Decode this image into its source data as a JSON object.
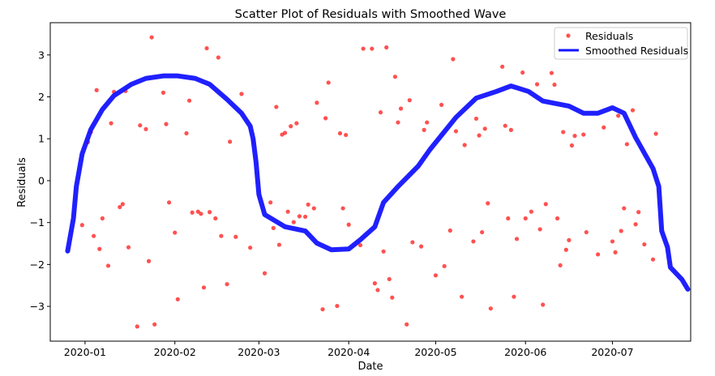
{
  "chart_data": {
    "type": "scatter",
    "title": "Scatter Plot of Residuals with Smoothed Wave",
    "xlabel": "Date",
    "ylabel": "Residuals",
    "xlim": [
      "2019-12-20",
      "2020-07-28"
    ],
    "ylim": [
      -3.83,
      3.77
    ],
    "x_ticks": [
      {
        "date": "2020-01-01",
        "label": "2020-01"
      },
      {
        "date": "2020-02-01",
        "label": "2020-02"
      },
      {
        "date": "2020-03-01",
        "label": "2020-03"
      },
      {
        "date": "2020-04-01",
        "label": "2020-04"
      },
      {
        "date": "2020-05-01",
        "label": "2020-05"
      },
      {
        "date": "2020-06-01",
        "label": "2020-06"
      },
      {
        "date": "2020-07-01",
        "label": "2020-07"
      }
    ],
    "y_ticks": [
      {
        "value": -3,
        "label": "−3"
      },
      {
        "value": -2,
        "label": "−2"
      },
      {
        "value": -1,
        "label": "−1"
      },
      {
        "value": 0,
        "label": "0"
      },
      {
        "value": 1,
        "label": "1"
      },
      {
        "value": 2,
        "label": "2"
      },
      {
        "value": 3,
        "label": "3"
      }
    ],
    "grid": false,
    "legend_position": "top-right",
    "series": [
      {
        "name": "Residuals",
        "kind": "scatter",
        "color": "#ff3333",
        "points": [
          [
            "2019-12-31",
            -1.06
          ],
          [
            "2020-01-02",
            0.92
          ],
          [
            "2020-01-03",
            1.16
          ],
          [
            "2020-01-04",
            -1.32
          ],
          [
            "2020-01-05",
            2.16
          ],
          [
            "2020-01-06",
            -1.63
          ],
          [
            "2020-01-07",
            -0.9
          ],
          [
            "2020-01-09",
            -2.03
          ],
          [
            "2020-01-10",
            1.37
          ],
          [
            "2020-01-11",
            2.12
          ],
          [
            "2020-01-13",
            -0.63
          ],
          [
            "2020-01-14",
            -0.56
          ],
          [
            "2020-01-15",
            2.14
          ],
          [
            "2020-01-16",
            -1.59
          ],
          [
            "2020-01-19",
            -3.48
          ],
          [
            "2020-01-20",
            1.32
          ],
          [
            "2020-01-22",
            1.23
          ],
          [
            "2020-01-23",
            -1.92
          ],
          [
            "2020-01-24",
            3.42
          ],
          [
            "2020-01-25",
            -3.43
          ],
          [
            "2020-01-28",
            2.1
          ],
          [
            "2020-01-29",
            1.35
          ],
          [
            "2020-01-30",
            -0.52
          ],
          [
            "2020-02-01",
            -1.24
          ],
          [
            "2020-02-02",
            -2.83
          ],
          [
            "2020-02-05",
            1.13
          ],
          [
            "2020-02-06",
            1.91
          ],
          [
            "2020-02-07",
            -0.76
          ],
          [
            "2020-02-09",
            -0.74
          ],
          [
            "2020-02-10",
            -0.79
          ],
          [
            "2020-02-11",
            -2.55
          ],
          [
            "2020-02-12",
            3.16
          ],
          [
            "2020-02-13",
            -0.75
          ],
          [
            "2020-02-15",
            -0.9
          ],
          [
            "2020-02-16",
            2.94
          ],
          [
            "2020-02-17",
            -1.32
          ],
          [
            "2020-02-19",
            -2.47
          ],
          [
            "2020-02-20",
            0.93
          ],
          [
            "2020-02-22",
            -1.34
          ],
          [
            "2020-02-24",
            2.07
          ],
          [
            "2020-02-27",
            -1.6
          ],
          [
            "2020-02-28",
            0.95
          ],
          [
            "2020-03-03",
            -2.21
          ],
          [
            "2020-03-05",
            -0.52
          ],
          [
            "2020-03-06",
            -1.13
          ],
          [
            "2020-03-07",
            1.76
          ],
          [
            "2020-03-08",
            -1.53
          ],
          [
            "2020-03-09",
            1.1
          ],
          [
            "2020-03-10",
            1.14
          ],
          [
            "2020-03-11",
            -0.74
          ],
          [
            "2020-03-12",
            1.3
          ],
          [
            "2020-03-13",
            -0.99
          ],
          [
            "2020-03-14",
            1.37
          ],
          [
            "2020-03-15",
            -0.85
          ],
          [
            "2020-03-17",
            -0.86
          ],
          [
            "2020-03-18",
            -0.57
          ],
          [
            "2020-03-20",
            -0.66
          ],
          [
            "2020-03-21",
            1.86
          ],
          [
            "2020-03-23",
            -3.07
          ],
          [
            "2020-03-24",
            1.49
          ],
          [
            "2020-03-25",
            2.34
          ],
          [
            "2020-03-28",
            -2.99
          ],
          [
            "2020-03-29",
            1.13
          ],
          [
            "2020-03-30",
            -0.66
          ],
          [
            "2020-03-31",
            1.09
          ],
          [
            "2020-04-01",
            -1.05
          ],
          [
            "2020-04-05",
            -1.54
          ],
          [
            "2020-04-06",
            3.15
          ],
          [
            "2020-04-09",
            3.15
          ],
          [
            "2020-04-10",
            -2.45
          ],
          [
            "2020-04-11",
            -2.61
          ],
          [
            "2020-04-12",
            1.63
          ],
          [
            "2020-04-13",
            -1.69
          ],
          [
            "2020-04-14",
            3.18
          ],
          [
            "2020-04-15",
            -2.35
          ],
          [
            "2020-04-16",
            -2.79
          ],
          [
            "2020-04-17",
            2.48
          ],
          [
            "2020-04-18",
            1.39
          ],
          [
            "2020-04-19",
            1.72
          ],
          [
            "2020-04-21",
            -3.43
          ],
          [
            "2020-04-22",
            1.92
          ],
          [
            "2020-04-23",
            -1.47
          ],
          [
            "2020-04-26",
            -1.57
          ],
          [
            "2020-04-27",
            1.21
          ],
          [
            "2020-04-28",
            1.39
          ],
          [
            "2020-05-01",
            -2.26
          ],
          [
            "2020-05-03",
            1.81
          ],
          [
            "2020-05-04",
            -2.04
          ],
          [
            "2020-05-06",
            -1.19
          ],
          [
            "2020-05-07",
            2.9
          ],
          [
            "2020-05-08",
            1.18
          ],
          [
            "2020-05-10",
            -2.77
          ],
          [
            "2020-05-11",
            0.85
          ],
          [
            "2020-05-14",
            -1.45
          ],
          [
            "2020-05-15",
            1.48
          ],
          [
            "2020-05-16",
            1.08
          ],
          [
            "2020-05-17",
            -1.23
          ],
          [
            "2020-05-18",
            1.24
          ],
          [
            "2020-05-19",
            -0.54
          ],
          [
            "2020-05-20",
            -3.05
          ],
          [
            "2020-05-24",
            2.72
          ],
          [
            "2020-05-25",
            1.31
          ],
          [
            "2020-05-26",
            -0.9
          ],
          [
            "2020-05-27",
            1.21
          ],
          [
            "2020-05-28",
            -2.77
          ],
          [
            "2020-05-29",
            -1.39
          ],
          [
            "2020-05-31",
            2.58
          ],
          [
            "2020-06-01",
            -0.9
          ],
          [
            "2020-06-03",
            -0.74
          ],
          [
            "2020-06-05",
            2.3
          ],
          [
            "2020-06-06",
            -1.16
          ],
          [
            "2020-06-07",
            -2.96
          ],
          [
            "2020-06-08",
            -0.56
          ],
          [
            "2020-06-10",
            2.57
          ],
          [
            "2020-06-11",
            2.29
          ],
          [
            "2020-06-12",
            -0.9
          ],
          [
            "2020-06-13",
            -2.02
          ],
          [
            "2020-06-14",
            1.16
          ],
          [
            "2020-06-15",
            -1.65
          ],
          [
            "2020-06-16",
            -1.42
          ],
          [
            "2020-06-17",
            0.84
          ],
          [
            "2020-06-18",
            1.07
          ],
          [
            "2020-06-21",
            1.1
          ],
          [
            "2020-06-22",
            -1.23
          ],
          [
            "2020-06-26",
            -1.76
          ],
          [
            "2020-06-28",
            1.27
          ],
          [
            "2020-07-01",
            -1.45
          ],
          [
            "2020-07-02",
            -1.71
          ],
          [
            "2020-07-03",
            1.55
          ],
          [
            "2020-07-04",
            -1.2
          ],
          [
            "2020-07-05",
            -0.66
          ],
          [
            "2020-07-06",
            0.87
          ],
          [
            "2020-07-08",
            1.68
          ],
          [
            "2020-07-09",
            -1.04
          ],
          [
            "2020-07-10",
            -0.75
          ],
          [
            "2020-07-12",
            -1.52
          ],
          [
            "2020-07-15",
            -1.88
          ],
          [
            "2020-07-16",
            1.12
          ]
        ]
      },
      {
        "name": "Smoothed Residuals",
        "kind": "line",
        "color": "#1414ff",
        "points": [
          [
            "2019-12-26",
            -1.68
          ],
          [
            "2019-12-28",
            -0.9
          ],
          [
            "2019-12-29",
            -0.14
          ],
          [
            "2019-12-31",
            0.64
          ],
          [
            "2020-01-03",
            1.22
          ],
          [
            "2020-01-07",
            1.7
          ],
          [
            "2020-01-11",
            2.03
          ],
          [
            "2020-01-17",
            2.3
          ],
          [
            "2020-01-22",
            2.44
          ],
          [
            "2020-01-28",
            2.5
          ],
          [
            "2020-02-02",
            2.5
          ],
          [
            "2020-02-08",
            2.44
          ],
          [
            "2020-02-13",
            2.3
          ],
          [
            "2020-02-19",
            1.94
          ],
          [
            "2020-02-24",
            1.61
          ],
          [
            "2020-02-27",
            1.3
          ],
          [
            "2020-02-28",
            1.0
          ],
          [
            "2020-02-29",
            0.45
          ],
          [
            "2020-03-01",
            -0.33
          ],
          [
            "2020-03-03",
            -0.81
          ],
          [
            "2020-03-10",
            -1.1
          ],
          [
            "2020-03-17",
            -1.2
          ],
          [
            "2020-03-21",
            -1.49
          ],
          [
            "2020-03-26",
            -1.65
          ],
          [
            "2020-04-01",
            -1.63
          ],
          [
            "2020-04-05",
            -1.41
          ],
          [
            "2020-04-10",
            -1.1
          ],
          [
            "2020-04-13",
            -0.52
          ],
          [
            "2020-04-18",
            -0.14
          ],
          [
            "2020-04-25",
            0.35
          ],
          [
            "2020-04-29",
            0.74
          ],
          [
            "2020-05-08",
            1.51
          ],
          [
            "2020-05-15",
            1.97
          ],
          [
            "2020-05-22",
            2.13
          ],
          [
            "2020-05-27",
            2.26
          ],
          [
            "2020-06-02",
            2.13
          ],
          [
            "2020-06-07",
            1.9
          ],
          [
            "2020-06-16",
            1.78
          ],
          [
            "2020-06-21",
            1.61
          ],
          [
            "2020-06-26",
            1.61
          ],
          [
            "2020-07-01",
            1.74
          ],
          [
            "2020-07-05",
            1.61
          ],
          [
            "2020-07-09",
            1.03
          ],
          [
            "2020-07-15",
            0.29
          ],
          [
            "2020-07-17",
            -0.14
          ],
          [
            "2020-07-18",
            -1.2
          ],
          [
            "2020-07-20",
            -1.59
          ],
          [
            "2020-07-21",
            -2.07
          ],
          [
            "2020-07-25",
            -2.36
          ],
          [
            "2020-07-27",
            -2.59
          ]
        ]
      }
    ]
  }
}
